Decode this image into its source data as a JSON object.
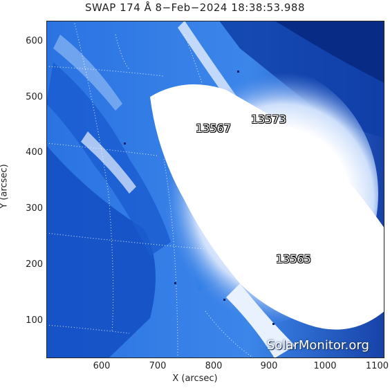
{
  "title": "SWAP 174 Å  8−Feb−2024 18:38:53.988",
  "axes": {
    "xlabel": "X (arcsec)",
    "ylabel": "Y (arcsec)",
    "xticks": [
      "600",
      "700",
      "800",
      "900",
      "1000",
      "1100"
    ],
    "yticks": [
      "600",
      "500",
      "400",
      "300",
      "200",
      "100"
    ]
  },
  "active_regions": [
    "13567",
    "13573",
    "13565"
  ],
  "watermark": "SolarMonitor.org",
  "colors": {
    "background": "#1d5fd6",
    "bright": "#ffffff",
    "dark": "#0a2d8a"
  }
}
